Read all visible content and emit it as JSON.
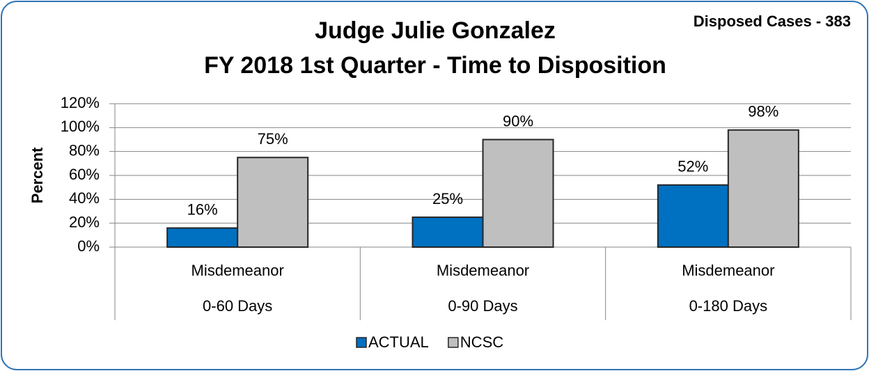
{
  "chart_data": {
    "type": "bar",
    "title": [
      "Judge Julie Gonzalez",
      "FY 2018  1st Quarter - Time to Disposition"
    ],
    "annotation": "Disposed Cases - 383",
    "ylabel": "Percent",
    "categories": [
      [
        "Misdemeanor",
        "0-60 Days"
      ],
      [
        "Misdemeanor",
        "0-90 Days"
      ],
      [
        "Misdemeanor",
        "0-180 Days"
      ]
    ],
    "series": [
      {
        "name": "ACTUAL",
        "color": "#0070c0",
        "values": [
          16,
          25,
          52
        ],
        "value_labels": [
          "16%",
          "25%",
          "52%"
        ]
      },
      {
        "name": "NCSC",
        "color": "#bfbfbf",
        "values": [
          75,
          90,
          98
        ],
        "value_labels": [
          "75%",
          "90%",
          "98%"
        ]
      }
    ],
    "ylim": [
      0,
      120
    ],
    "yticks": [
      {
        "value": 0,
        "label": "0%"
      },
      {
        "value": 20,
        "label": "20%"
      },
      {
        "value": 40,
        "label": "40%"
      },
      {
        "value": 60,
        "label": "60%"
      },
      {
        "value": 80,
        "label": "80%"
      },
      {
        "value": 100,
        "label": "100%"
      },
      {
        "value": 120,
        "label": "120%"
      }
    ],
    "grid": true,
    "legend": "bottom"
  }
}
